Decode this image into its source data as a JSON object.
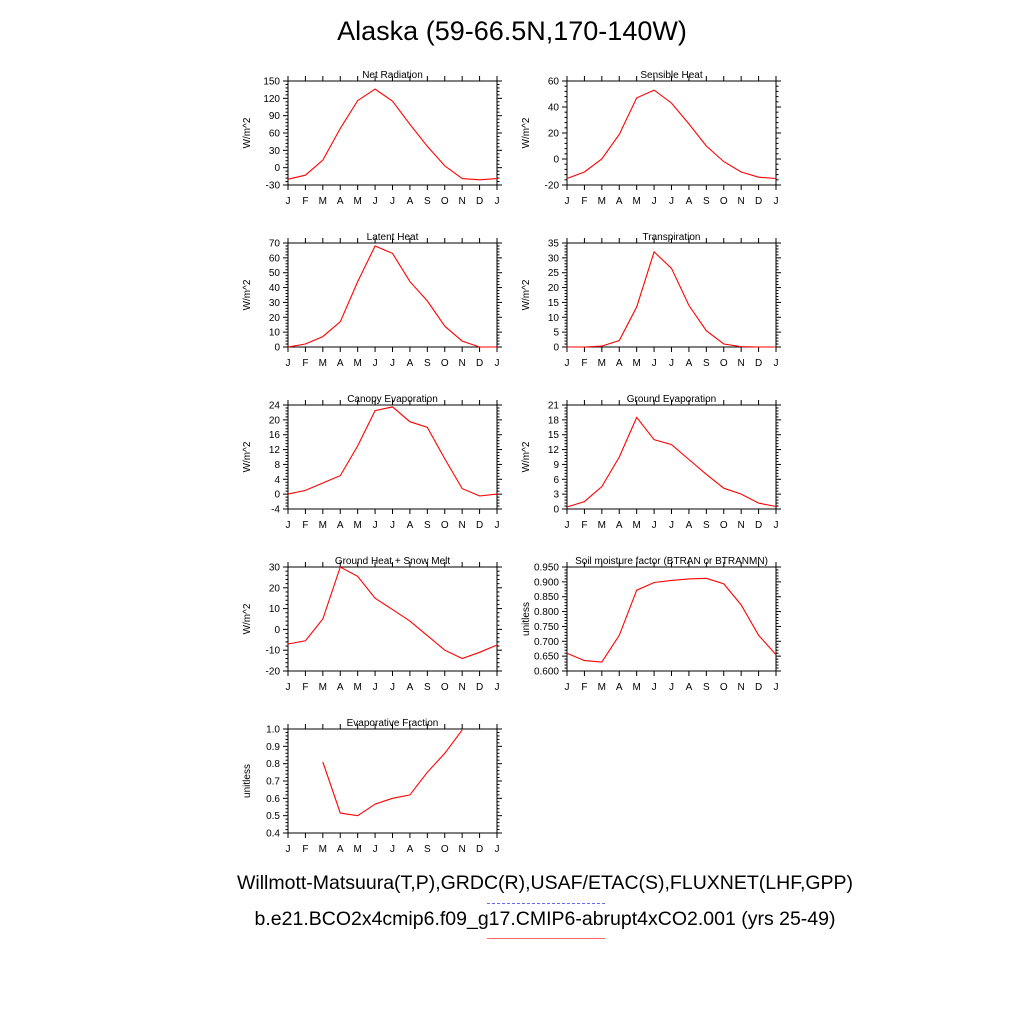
{
  "title": "Alaska (59-66.5N,170-140W)",
  "footer": {
    "obs": "Willmott-Matsuura(T,P),GRDC(R),USAF/ETAC(S),FLUXNET(LHF,GPP)",
    "model": "b.e21.BCO2x4cmip6.f09_g17.CMIP6-abrupt4xCO2.001 (yrs 25-49)",
    "obs_color": "#6666ff",
    "model_color": "#ff6666"
  },
  "chart_data": [
    {
      "type": "line",
      "title": "Net Radiation",
      "ylabel": "W/m^2",
      "categories": [
        "J",
        "F",
        "M",
        "A",
        "M",
        "J",
        "J",
        "A",
        "S",
        "O",
        "N",
        "D",
        "J"
      ],
      "ylim": [
        -30,
        150
      ],
      "yticks": [
        -30,
        0,
        30,
        60,
        90,
        120,
        150
      ],
      "ytick_labels": [
        "-30",
        "0",
        "30",
        "60",
        "90",
        "120",
        "150"
      ],
      "series": [
        {
          "color": "#ff0000",
          "values": [
            -20,
            -13,
            13,
            68,
            116,
            136,
            115,
            75,
            37,
            3,
            -19,
            -21,
            -19
          ]
        }
      ]
    },
    {
      "type": "line",
      "title": "Sensible Heat",
      "ylabel": "W/m^2",
      "categories": [
        "J",
        "F",
        "M",
        "A",
        "M",
        "J",
        "J",
        "A",
        "S",
        "O",
        "N",
        "D",
        "J"
      ],
      "ylim": [
        -20,
        60
      ],
      "yticks": [
        -20,
        0,
        20,
        40,
        60
      ],
      "ytick_labels": [
        "-20",
        "0",
        "20",
        "40",
        "60"
      ],
      "series": [
        {
          "color": "#ff0000",
          "values": [
            -15,
            -10,
            0,
            19,
            47,
            53,
            43,
            27,
            10,
            -2,
            -10,
            -14,
            -15
          ]
        }
      ]
    },
    {
      "type": "line",
      "title": "Latent Heat",
      "ylabel": "W/m^2",
      "categories": [
        "J",
        "F",
        "M",
        "A",
        "M",
        "J",
        "J",
        "A",
        "S",
        "O",
        "N",
        "D",
        "J"
      ],
      "ylim": [
        0,
        70
      ],
      "yticks": [
        0,
        10,
        20,
        30,
        40,
        50,
        60,
        70
      ],
      "ytick_labels": [
        "0",
        "10",
        "20",
        "30",
        "40",
        "50",
        "60",
        "70"
      ],
      "series": [
        {
          "color": "#ff0000",
          "values": [
            0,
            2,
            7,
            17,
            44,
            68,
            63,
            44,
            31,
            14,
            4,
            0,
            0
          ]
        }
      ]
    },
    {
      "type": "line",
      "title": "Transpiration",
      "ylabel": "W/m^2",
      "categories": [
        "J",
        "F",
        "M",
        "A",
        "M",
        "J",
        "J",
        "A",
        "S",
        "O",
        "N",
        "D",
        "J"
      ],
      "ylim": [
        0,
        35
      ],
      "yticks": [
        0,
        5,
        10,
        15,
        20,
        25,
        30,
        35
      ],
      "ytick_labels": [
        "0",
        "5",
        "10",
        "15",
        "20",
        "25",
        "30",
        "35"
      ],
      "series": [
        {
          "color": "#ff0000",
          "values": [
            0,
            0,
            0.3,
            2.2,
            13.5,
            32,
            26.5,
            14,
            5.5,
            1,
            0.1,
            0,
            0
          ]
        }
      ]
    },
    {
      "type": "line",
      "title": "Canopy Evaporation",
      "ylabel": "W/m^2",
      "categories": [
        "J",
        "F",
        "M",
        "A",
        "M",
        "J",
        "J",
        "A",
        "S",
        "O",
        "N",
        "D",
        "J"
      ],
      "ylim": [
        -4,
        24
      ],
      "yticks": [
        -4,
        0,
        4,
        8,
        12,
        16,
        20,
        24
      ],
      "ytick_labels": [
        "-4",
        "0",
        "4",
        "8",
        "12",
        "16",
        "20",
        "24"
      ],
      "series": [
        {
          "color": "#ff0000",
          "values": [
            0,
            1,
            3,
            5,
            13,
            22.5,
            23.5,
            19.5,
            18,
            9.5,
            1.5,
            -0.5,
            0
          ]
        }
      ]
    },
    {
      "type": "line",
      "title": "Ground Evaporation",
      "ylabel": "W/m^2",
      "categories": [
        "J",
        "F",
        "M",
        "A",
        "M",
        "J",
        "J",
        "A",
        "S",
        "O",
        "N",
        "D",
        "J"
      ],
      "ylim": [
        0,
        21
      ],
      "yticks": [
        0,
        3,
        6,
        9,
        12,
        15,
        18,
        21
      ],
      "ytick_labels": [
        "0",
        "3",
        "6",
        "9",
        "12",
        "15",
        "18",
        "21"
      ],
      "series": [
        {
          "color": "#ff0000",
          "values": [
            0.4,
            1.5,
            4.5,
            10.5,
            18.5,
            14,
            13,
            10,
            7,
            4.2,
            3,
            1.2,
            0.5
          ]
        }
      ]
    },
    {
      "type": "line",
      "title": "Ground Heat + Snow Melt",
      "ylabel": "W/m^2",
      "categories": [
        "J",
        "F",
        "M",
        "A",
        "M",
        "J",
        "J",
        "A",
        "S",
        "O",
        "N",
        "D",
        "J"
      ],
      "ylim": [
        -20,
        30
      ],
      "yticks": [
        -20,
        -10,
        0,
        10,
        20,
        30
      ],
      "ytick_labels": [
        "-20",
        "-10",
        "0",
        "10",
        "20",
        "30"
      ],
      "series": [
        {
          "color": "#ff0000",
          "values": [
            -7,
            -5.5,
            5,
            30,
            25.5,
            15,
            9.5,
            4,
            -3,
            -10,
            -14,
            -11,
            -7.5
          ]
        }
      ]
    },
    {
      "type": "line",
      "title": "Soil moisture factor (BTRAN or BTRANMN)",
      "ylabel": "unitless",
      "categories": [
        "J",
        "F",
        "M",
        "A",
        "M",
        "J",
        "J",
        "A",
        "S",
        "O",
        "N",
        "D",
        "J"
      ],
      "ylim": [
        0.6,
        0.95
      ],
      "yticks": [
        0.6,
        0.65,
        0.7,
        0.75,
        0.8,
        0.85,
        0.9,
        0.95
      ],
      "ytick_labels": [
        "0.600",
        "0.650",
        "0.700",
        "0.750",
        "0.800",
        "0.850",
        "0.900",
        "0.950"
      ],
      "series": [
        {
          "color": "#ff0000",
          "values": [
            0.66,
            0.635,
            0.63,
            0.72,
            0.872,
            0.898,
            0.905,
            0.91,
            0.912,
            0.893,
            0.822,
            0.72,
            0.655
          ]
        }
      ]
    },
    {
      "type": "line",
      "title": "Evaporative Fraction",
      "ylabel": "unitless",
      "categories": [
        "J",
        "F",
        "M",
        "A",
        "M",
        "J",
        "J",
        "A",
        "S",
        "O",
        "N",
        "D",
        "J"
      ],
      "ylim": [
        0.4,
        1.0
      ],
      "yticks": [
        0.4,
        0.5,
        0.6,
        0.7,
        0.8,
        0.9,
        1.0
      ],
      "ytick_labels": [
        "0.4",
        "0.5",
        "0.6",
        "0.7",
        "0.8",
        "0.9",
        "1.0"
      ],
      "series": [
        {
          "color": "#ff0000",
          "values": [
            null,
            null,
            0.81,
            0.515,
            0.5,
            0.567,
            0.6,
            0.62,
            0.75,
            0.86,
            0.995,
            null,
            null
          ]
        }
      ]
    }
  ]
}
